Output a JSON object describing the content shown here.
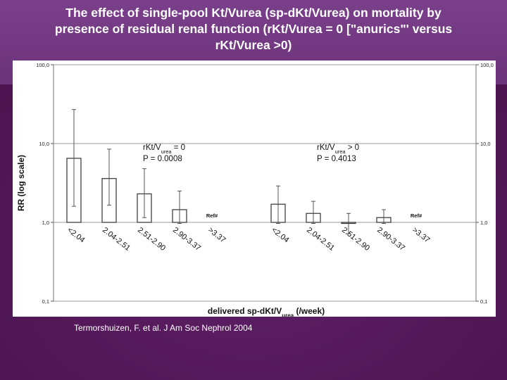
{
  "slide": {
    "title_line1": "The effect of single-pool Kt/Vurea (sp-dKt/Vurea) on mortality by",
    "title_line2": "presence of residual renal function (rKt/Vurea = 0 [\"anurics\"' versus",
    "title_line3": "rKt/Vurea >0)",
    "citation": "Termorshuizen, F. et al. J Am Soc Nephrol 2004"
  },
  "colors": {
    "background": "#5a1e62",
    "title_text": "#ffffff",
    "bar_fill": "#ffffff",
    "bar_stroke": "#333333",
    "grid": "#9a9a9a"
  },
  "chart_data": {
    "type": "bar",
    "scale": "log",
    "ylim": [
      0.1,
      100
    ],
    "y_ticks": [
      "100,0",
      "10,0",
      "1,0",
      "0,1"
    ],
    "y_tick_values": [
      100,
      10,
      1,
      0.1
    ],
    "ylabel": "RR (log scale)",
    "xlabel_main": "delivered sp-dKt/V",
    "xlabel_sub": "urea",
    "xlabel_tail": " (/week)",
    "grid": true,
    "groups": [
      {
        "name_main": "rKt/V",
        "name_sub": "urea",
        "name_tail": " = 0",
        "p_value": "P = 0.0008",
        "categories": [
          "<2.04",
          "2.04-2.51",
          "2.51-2.90",
          "2.90-3.37",
          ">3.37"
        ],
        "values": [
          6.5,
          3.6,
          2.3,
          1.45,
          null
        ],
        "ci_lower": [
          1.6,
          1.65,
          1.15,
          0.97,
          null
        ],
        "ci_upper": [
          27,
          8.5,
          4.8,
          2.5,
          null
        ],
        "reference_index": 4,
        "reference_label": "Ref#"
      },
      {
        "name_main": "rKt/V",
        "name_sub": "urea",
        "name_tail": " > 0",
        "p_value": "P = 0.4013",
        "categories": [
          "<2.04",
          "2.04-2.51",
          "2.51-2.90",
          "2.90-3.37",
          ">3.37"
        ],
        "values": [
          1.7,
          1.3,
          0.97,
          1.15,
          null
        ],
        "ci_lower": [
          0.97,
          0.97,
          0.72,
          0.97,
          null
        ],
        "ci_upper": [
          2.9,
          1.85,
          1.3,
          1.45,
          null
        ],
        "reference_index": 4,
        "reference_label": "Ref#"
      }
    ]
  }
}
